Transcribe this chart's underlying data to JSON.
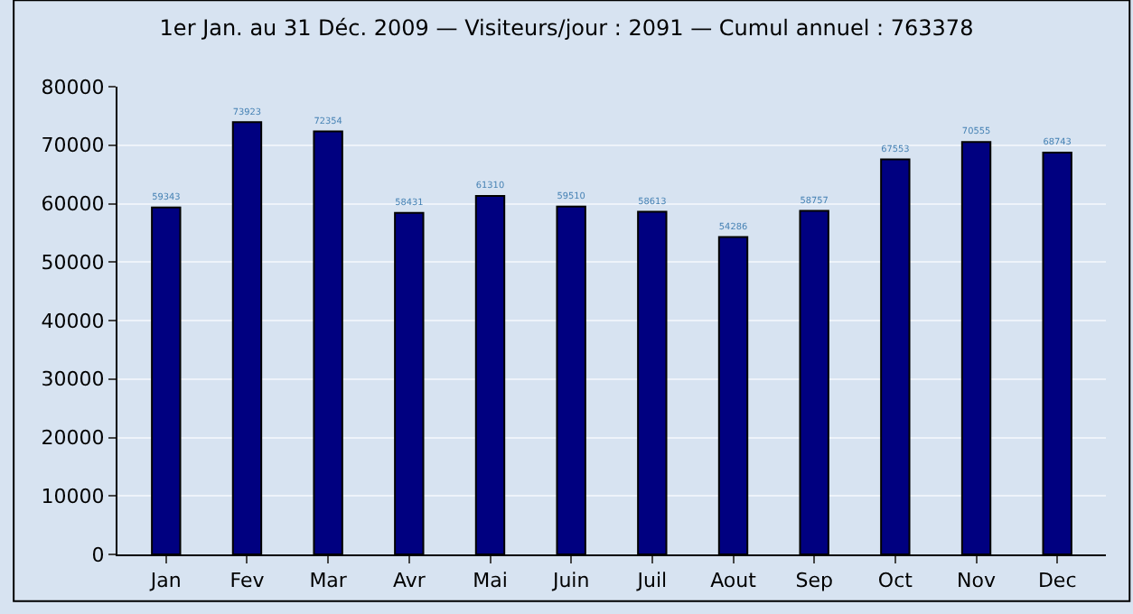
{
  "chart_data": {
    "type": "bar",
    "title": "1er Jan. au 31 Déc. 2009 — Visiteurs/jour : 2091 — Cumul annuel : 763378",
    "categories": [
      "Jan",
      "Fev",
      "Mar",
      "Avr",
      "Mai",
      "Juin",
      "Juil",
      "Aout",
      "Sep",
      "Oct",
      "Nov",
      "Dec"
    ],
    "values": [
      59343,
      73923,
      72354,
      58431,
      61310,
      59510,
      58613,
      54286,
      58757,
      67553,
      70555,
      68743
    ],
    "color": "#000080",
    "ylim": [
      0,
      80000
    ],
    "yticks": [
      0,
      10000,
      20000,
      30000,
      40000,
      50000,
      60000,
      70000,
      80000
    ],
    "grid": "y",
    "data_labels": true
  }
}
